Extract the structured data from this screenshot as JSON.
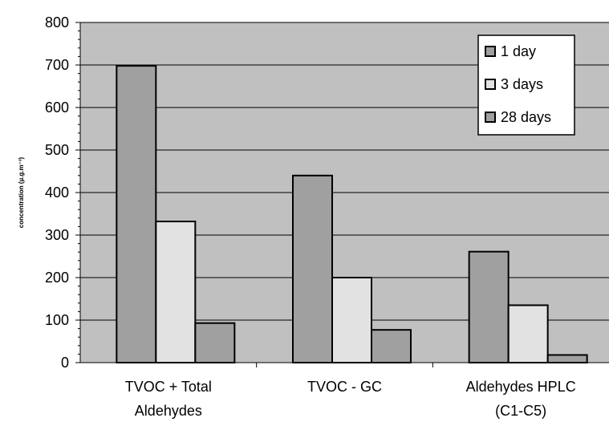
{
  "chart_data": {
    "type": "bar",
    "title": "",
    "xlabel": "",
    "ylabel": "concentration (µ.g.m⁻³)",
    "ylim": [
      0,
      800
    ],
    "yticks": [
      0,
      100,
      200,
      300,
      400,
      500,
      600,
      700,
      800
    ],
    "grid": true,
    "legend_position": "top-right",
    "categories": [
      [
        "TVOC + Total",
        "Aldehydes"
      ],
      [
        "TVOC - GC"
      ],
      [
        "Aldehydes HPLC",
        "(C1-C5)"
      ]
    ],
    "series": [
      {
        "name": "1 day",
        "color": "#a0a0a0",
        "values": [
          698,
          440,
          261
        ]
      },
      {
        "name": "3 days",
        "color": "#e2e2e2",
        "values": [
          332,
          200,
          135
        ]
      },
      {
        "name": "28 days",
        "color": "#a0a0a0",
        "values": [
          93,
          77,
          18
        ]
      }
    ],
    "plot_background": "#c0c0c0"
  }
}
